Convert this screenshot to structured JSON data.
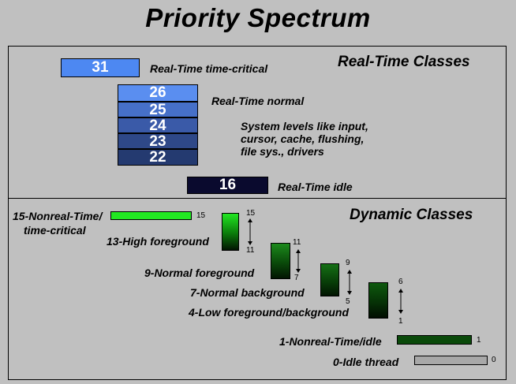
{
  "title": "Priority Spectrum",
  "realtime": {
    "heading": "Real-Time Classes",
    "level_31": "31",
    "label_31": "Real-Time time-critical",
    "level_26": "26",
    "level_25": "25",
    "level_24": "24",
    "level_23": "23",
    "level_22": "22",
    "label_normal": "Real-Time normal",
    "system_note": [
      "System levels like input,",
      "cursor, cache, flushing,",
      "file sys., drivers"
    ],
    "level_16": "16",
    "label_idle": "Real-Time idle"
  },
  "dynamic": {
    "heading": "Dynamic Classes",
    "time_critical": {
      "label_lines": [
        "15-Nonreal-Time/",
        "time-critical"
      ],
      "value": "15"
    },
    "high_foreground": {
      "label": "13-High foreground",
      "top": "15",
      "bottom": "11"
    },
    "normal_foreground": {
      "label": "9-Normal foreground",
      "top": "11",
      "bottom": "7"
    },
    "normal_background": {
      "label": "7-Normal background",
      "top": "9",
      "bottom": "5"
    },
    "low": {
      "label": "4-Low foreground/background",
      "top": "6",
      "bottom": "1"
    },
    "nonreal_idle": {
      "label": "1-Nonreal-Time/idle",
      "value": "1"
    },
    "idle_thread": {
      "label": "0-Idle thread",
      "value": "0"
    }
  },
  "colors": {
    "background": "#c0c0c0",
    "rt31": "#4d88f2",
    "rt16": "#0a0a2e",
    "bright_green": "#22e822",
    "dark_green": "#0a4a0a",
    "idle_gray": "#a8a8a8"
  }
}
